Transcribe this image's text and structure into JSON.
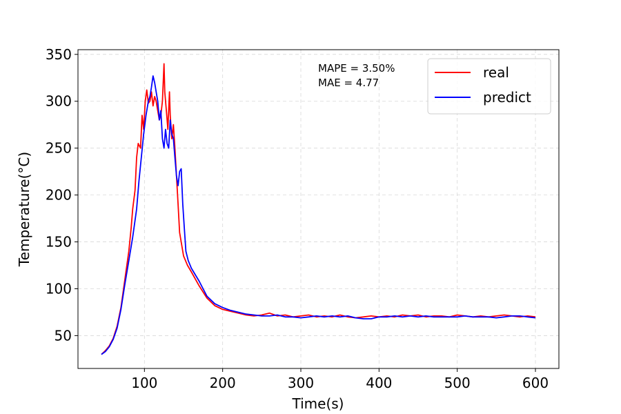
{
  "chart_data": {
    "type": "line",
    "title": "",
    "xlabel": "Time(s)",
    "ylabel": "Temperature(°C)",
    "xlim": [
      15,
      630
    ],
    "ylim": [
      15,
      355
    ],
    "xticks": [
      100,
      200,
      300,
      400,
      500,
      600
    ],
    "yticks": [
      50,
      100,
      150,
      200,
      250,
      300,
      350
    ],
    "grid": true,
    "legend_position": "top-right",
    "annotations": [
      "MAPE = 3.50%",
      "MAE = 4.77"
    ],
    "series": [
      {
        "name": "real",
        "color": "#ff0000",
        "x": [
          45,
          50,
          55,
          60,
          65,
          70,
          75,
          80,
          83,
          85,
          88,
          90,
          92,
          95,
          97,
          99,
          101,
          103,
          105,
          107,
          109,
          111,
          113,
          115,
          117,
          119,
          121,
          123,
          125,
          126,
          128,
          130,
          132,
          133,
          135,
          137,
          139,
          141,
          143,
          145,
          147,
          150,
          155,
          160,
          170,
          180,
          190,
          200,
          210,
          220,
          230,
          240,
          250,
          260,
          270,
          280,
          290,
          300,
          310,
          320,
          330,
          340,
          350,
          360,
          370,
          380,
          390,
          400,
          410,
          420,
          430,
          440,
          450,
          460,
          470,
          480,
          490,
          500,
          510,
          520,
          530,
          540,
          550,
          560,
          570,
          580,
          590,
          600
        ],
        "y": [
          30,
          34,
          39,
          47,
          60,
          80,
          110,
          140,
          165,
          185,
          205,
          240,
          255,
          250,
          285,
          270,
          300,
          312,
          298,
          300,
          310,
          295,
          305,
          300,
          290,
          280,
          285,
          300,
          340,
          310,
          290,
          270,
          310,
          285,
          260,
          275,
          250,
          220,
          190,
          160,
          150,
          135,
          125,
          118,
          103,
          90,
          82,
          78,
          76,
          74,
          72,
          71,
          72,
          74,
          71,
          72,
          70,
          71,
          72,
          70,
          71,
          70,
          72,
          70,
          69,
          70,
          71,
          70,
          71,
          70,
          72,
          71,
          72,
          70,
          71,
          71,
          70,
          72,
          71,
          70,
          71,
          70,
          71,
          72,
          71,
          70,
          71,
          70
        ]
      },
      {
        "name": "predict",
        "color": "#0000ff",
        "x": [
          45,
          50,
          55,
          60,
          65,
          70,
          75,
          80,
          85,
          90,
          93,
          96,
          99,
          102,
          105,
          107,
          109,
          111,
          113,
          115,
          117,
          119,
          121,
          123,
          125,
          127,
          129,
          131,
          133,
          135,
          137,
          139,
          141,
          143,
          145,
          147,
          149,
          151,
          153,
          156,
          160,
          165,
          170,
          175,
          180,
          190,
          200,
          210,
          220,
          230,
          240,
          250,
          260,
          270,
          280,
          290,
          300,
          310,
          320,
          330,
          340,
          350,
          360,
          370,
          380,
          390,
          400,
          410,
          420,
          430,
          440,
          450,
          460,
          470,
          480,
          490,
          500,
          510,
          520,
          530,
          540,
          550,
          560,
          570,
          580,
          590,
          600
        ],
        "y": [
          30,
          33,
          38,
          46,
          58,
          78,
          105,
          130,
          155,
          185,
          215,
          240,
          265,
          285,
          300,
          305,
          315,
          327,
          320,
          310,
          300,
          280,
          290,
          260,
          250,
          270,
          255,
          250,
          280,
          265,
          260,
          240,
          220,
          210,
          225,
          228,
          190,
          165,
          140,
          130,
          122,
          115,
          108,
          100,
          92,
          84,
          80,
          77,
          75,
          73,
          72,
          71,
          71,
          72,
          70,
          70,
          69,
          70,
          71,
          70,
          71,
          70,
          71,
          69,
          68,
          68,
          70,
          70,
          71,
          70,
          71,
          70,
          71,
          70,
          70,
          70,
          70,
          71,
          70,
          70,
          70,
          69,
          70,
          71,
          71,
          70,
          69
        ]
      }
    ]
  }
}
